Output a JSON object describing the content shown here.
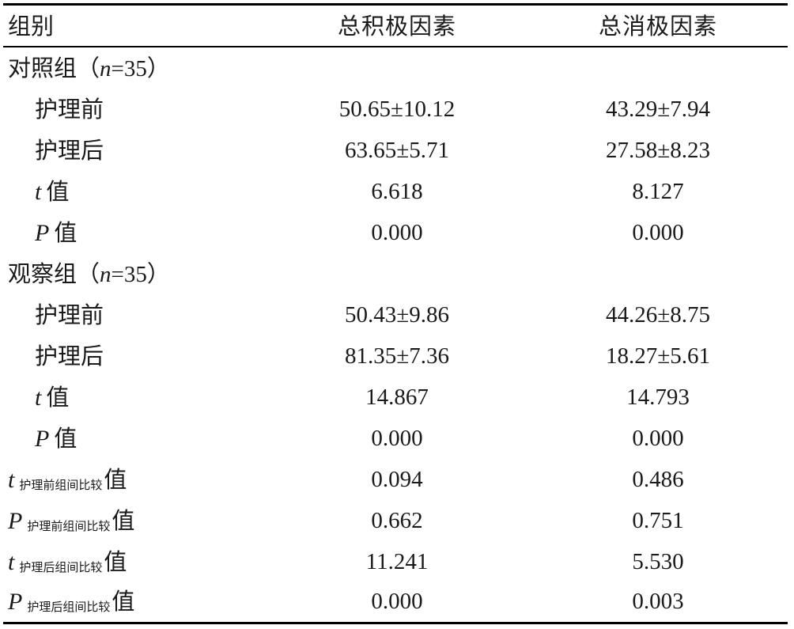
{
  "header": {
    "col1": "组别",
    "col2": "总积极因素",
    "col3": "总消极因素"
  },
  "groups": [
    {
      "label_prefix": "对照组（",
      "label_n": "n",
      "label_suffix": "=35）",
      "rows": [
        {
          "label": "护理前",
          "pos": "50.65±10.12",
          "neg": "43.29±7.94"
        },
        {
          "label": "护理后",
          "pos": "63.65±5.71",
          "neg": "27.58±8.23"
        },
        {
          "sym": "t",
          "label": "值",
          "pos": "6.618",
          "neg": "8.127"
        },
        {
          "sym": "P",
          "label": "值",
          "pos": "0.000",
          "neg": "0.000"
        }
      ]
    },
    {
      "label_prefix": "观察组（",
      "label_n": "n",
      "label_suffix": "=35）",
      "rows": [
        {
          "label": "护理前",
          "pos": "50.43±9.86",
          "neg": "44.26±8.75"
        },
        {
          "label": "护理后",
          "pos": "81.35±7.36",
          "neg": "18.27±5.61"
        },
        {
          "sym": "t",
          "label": "值",
          "pos": "14.867",
          "neg": "14.793"
        },
        {
          "sym": "P",
          "label": "值",
          "pos": "0.000",
          "neg": "0.000"
        }
      ]
    }
  ],
  "comparisons": [
    {
      "sym": "t",
      "sub": "护理前组间比较",
      "label": "值",
      "pos": "0.094",
      "neg": "0.486"
    },
    {
      "sym": "P",
      "sub": "护理前组间比较",
      "label": "值",
      "pos": "0.662",
      "neg": "0.751"
    },
    {
      "sym": "t",
      "sub": "护理后组间比较",
      "label": "值",
      "pos": "11.241",
      "neg": "5.530"
    },
    {
      "sym": "P",
      "sub": "护理后组间比较",
      "label": "值",
      "pos": "0.000",
      "neg": "0.003"
    }
  ]
}
